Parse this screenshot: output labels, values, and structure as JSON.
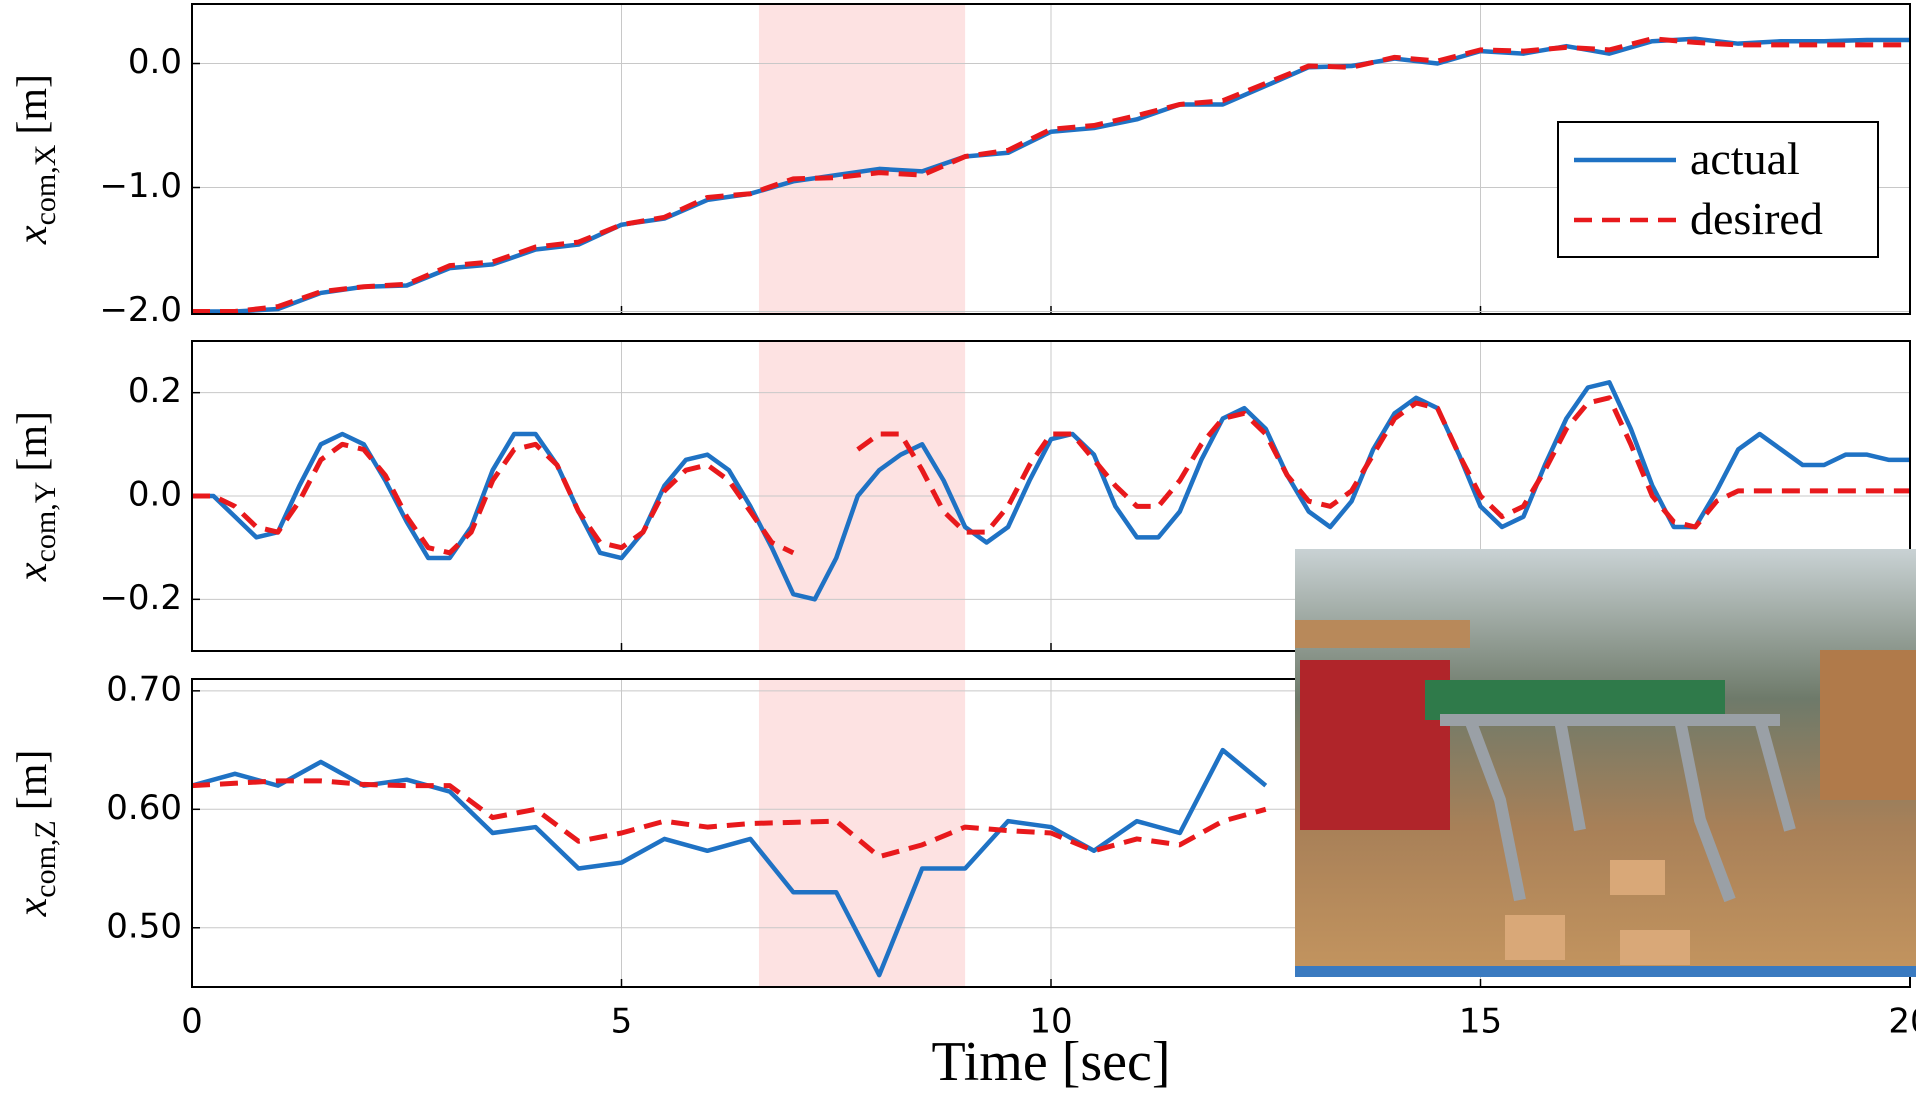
{
  "chart_data": [
    {
      "type": "line",
      "y_label": {
        "symbol": "x",
        "subscript": "com,X",
        "unit": "[m]"
      },
      "x": [
        0,
        0.5,
        1,
        1.5,
        2,
        2.5,
        3,
        3.5,
        4,
        4.5,
        5,
        5.5,
        6,
        6.5,
        7,
        7.5,
        8,
        8.5,
        9,
        9.5,
        10,
        10.5,
        11,
        11.5,
        12,
        12.5,
        13,
        13.5,
        14,
        14.5,
        15,
        15.5,
        16,
        16.5,
        17,
        17.5,
        18,
        18.5,
        19,
        19.5,
        20
      ],
      "series": [
        {
          "name": "actual",
          "color": "#1f72c4",
          "dash": "solid",
          "values": [
            -2.0,
            -2.0,
            -1.98,
            -1.85,
            -1.8,
            -1.79,
            -1.65,
            -1.62,
            -1.5,
            -1.46,
            -1.3,
            -1.25,
            -1.1,
            -1.05,
            -0.95,
            -0.9,
            -0.85,
            -0.87,
            -0.75,
            -0.72,
            -0.55,
            -0.52,
            -0.45,
            -0.33,
            -0.33,
            -0.18,
            -0.03,
            -0.02,
            0.04,
            0.0,
            0.1,
            0.08,
            0.14,
            0.08,
            0.18,
            0.2,
            0.16,
            0.18,
            0.18,
            0.19,
            0.19
          ]
        },
        {
          "name": "desired",
          "color": "#e8191c",
          "dash": "dashed",
          "values": [
            -2.0,
            -2.0,
            -1.96,
            -1.84,
            -1.8,
            -1.78,
            -1.63,
            -1.6,
            -1.48,
            -1.44,
            -1.3,
            -1.24,
            -1.08,
            -1.05,
            -0.93,
            -0.92,
            -0.88,
            -0.9,
            -0.75,
            -0.7,
            -0.53,
            -0.5,
            -0.42,
            -0.33,
            -0.3,
            -0.16,
            -0.02,
            -0.03,
            0.05,
            0.02,
            0.11,
            0.1,
            0.13,
            0.11,
            0.2,
            0.17,
            0.15,
            0.15,
            0.15,
            0.15,
            0.15
          ]
        }
      ],
      "xlim": [
        0,
        20
      ],
      "xticks": [
        0,
        5,
        10,
        15,
        20
      ],
      "ylim": [
        -2.02,
        0.48
      ],
      "yticks": [
        {
          "value": -2.0,
          "label": "−2.0"
        },
        {
          "value": -1.0,
          "label": "−1.0"
        },
        {
          "value": 0.0,
          "label": "0.0"
        }
      ],
      "highlight": [
        6.6,
        9.0
      ],
      "grid": true,
      "legend": "upper right"
    },
    {
      "type": "line",
      "y_label": {
        "symbol": "x",
        "subscript": "com,Y",
        "unit": "[m]"
      },
      "x": [
        0,
        0.25,
        0.5,
        0.75,
        1,
        1.25,
        1.5,
        1.75,
        2,
        2.25,
        2.5,
        2.75,
        3,
        3.25,
        3.5,
        3.75,
        4,
        4.25,
        4.5,
        4.75,
        5,
        5.25,
        5.5,
        5.75,
        6,
        6.25,
        6.5,
        6.75,
        7,
        7.25,
        7.5,
        7.75,
        8,
        8.25,
        8.5,
        8.75,
        9,
        9.25,
        9.5,
        9.75,
        10,
        10.25,
        10.5,
        10.75,
        11,
        11.25,
        11.5,
        11.75,
        12,
        12.25,
        12.5,
        12.75,
        13,
        13.25,
        13.5,
        13.75,
        14,
        14.25,
        14.5,
        14.75,
        15,
        15.25,
        15.5,
        15.75,
        16,
        16.25,
        16.5,
        16.75,
        17,
        17.25,
        17.5,
        17.75,
        18,
        18.25,
        18.5,
        18.75,
        19,
        19.25,
        19.5,
        19.75,
        20
      ],
      "series": [
        {
          "color": "#1f72c4",
          "dash": "solid",
          "values": [
            0.0,
            0.0,
            -0.04,
            -0.08,
            -0.07,
            0.02,
            0.1,
            0.12,
            0.1,
            0.03,
            -0.05,
            -0.12,
            -0.12,
            -0.06,
            0.05,
            0.12,
            0.12,
            0.06,
            -0.03,
            -0.11,
            -0.12,
            -0.07,
            0.02,
            0.07,
            0.08,
            0.05,
            -0.02,
            -0.1,
            -0.19,
            -0.2,
            -0.12,
            0.0,
            0.05,
            0.08,
            0.1,
            0.03,
            -0.06,
            -0.09,
            -0.06,
            0.03,
            0.11,
            0.12,
            0.08,
            -0.02,
            -0.08,
            -0.08,
            -0.03,
            0.07,
            0.15,
            0.17,
            0.13,
            0.04,
            -0.03,
            -0.06,
            -0.01,
            0.09,
            0.16,
            0.19,
            0.17,
            0.08,
            -0.02,
            -0.06,
            -0.04,
            0.06,
            0.15,
            0.21,
            0.22,
            0.13,
            0.02,
            -0.06,
            -0.06,
            0.01,
            0.09,
            0.12,
            0.09,
            0.06,
            0.06,
            0.08,
            0.08,
            0.07,
            0.07
          ]
        },
        {
          "color": "#e8191c",
          "dash": "dashed",
          "values": [
            0.0,
            0.0,
            -0.02,
            -0.06,
            -0.07,
            -0.01,
            0.07,
            0.1,
            0.09,
            0.04,
            -0.04,
            -0.1,
            -0.11,
            -0.07,
            0.03,
            0.09,
            0.1,
            0.06,
            -0.03,
            -0.09,
            -0.1,
            -0.07,
            0.01,
            0.05,
            0.06,
            0.03,
            -0.03,
            -0.09,
            -0.11,
            null,
            null,
            0.09,
            0.12,
            0.12,
            0.05,
            -0.03,
            -0.07,
            -0.07,
            -0.02,
            0.06,
            0.12,
            0.12,
            0.07,
            0.02,
            -0.02,
            -0.02,
            0.03,
            0.1,
            0.15,
            0.16,
            0.12,
            0.04,
            -0.01,
            -0.02,
            0.01,
            0.08,
            0.15,
            0.18,
            0.17,
            0.08,
            0.0,
            -0.04,
            -0.02,
            0.05,
            0.13,
            0.18,
            0.19,
            0.1,
            0.0,
            -0.05,
            -0.06,
            -0.01,
            0.01,
            0.01,
            0.01,
            0.01,
            0.01,
            0.01,
            0.01,
            0.01,
            0.01
          ]
        }
      ],
      "xlim": [
        0,
        20
      ],
      "xticks": [
        0,
        5,
        10,
        15,
        20
      ],
      "ylim": [
        -0.3,
        0.3
      ],
      "yticks": [
        {
          "value": -0.2,
          "label": "−0.2"
        },
        {
          "value": 0.0,
          "label": "0.0"
        },
        0.2
      ],
      "highlight": [
        6.6,
        9.0
      ],
      "grid": true
    },
    {
      "type": "line",
      "y_label": {
        "symbol": "x",
        "subscript": "com,Z",
        "unit": "[m]"
      },
      "x_label": "Time [sec]",
      "x": [
        0,
        0.5,
        1,
        1.5,
        2,
        2.5,
        3,
        3.5,
        4,
        4.5,
        5,
        5.5,
        6,
        6.5,
        7,
        7.5,
        8,
        8.5,
        9,
        9.5,
        10,
        10.5,
        11,
        11.5,
        12,
        12.5,
        13,
        13.5,
        14,
        14.5,
        15,
        15.5,
        16,
        16.5,
        17,
        17.5,
        18,
        18.5,
        19,
        19.5,
        20
      ],
      "series": [
        {
          "color": "#1f72c4",
          "dash": "solid",
          "values": [
            0.62,
            0.63,
            0.62,
            0.64,
            0.62,
            0.625,
            0.615,
            0.58,
            0.585,
            0.55,
            0.555,
            0.575,
            0.565,
            0.575,
            0.53,
            0.53,
            0.46,
            0.55,
            0.55,
            0.59,
            0.585,
            0.565,
            0.59,
            0.58,
            0.65,
            0.62,
            null,
            null,
            null,
            null,
            null,
            null,
            null,
            null,
            null,
            null,
            null,
            null,
            null,
            null,
            null
          ]
        },
        {
          "color": "#e8191c",
          "dash": "dashed",
          "values": [
            0.62,
            0.622,
            0.624,
            0.624,
            0.621,
            0.62,
            0.62,
            0.593,
            0.6,
            0.573,
            0.58,
            0.59,
            0.585,
            0.588,
            0.589,
            0.59,
            0.56,
            0.57,
            0.585,
            0.582,
            0.58,
            0.565,
            0.575,
            0.57,
            0.59,
            0.6,
            null,
            null,
            null,
            null,
            null,
            null,
            null,
            null,
            null,
            null,
            null,
            null,
            null,
            null,
            null
          ]
        }
      ],
      "xlim": [
        0,
        20
      ],
      "xticks": [
        0,
        5,
        10,
        15,
        20
      ],
      "ylim": [
        0.45,
        0.71
      ],
      "yticks": [
        {
          "value": 0.5,
          "label": "0.50"
        },
        {
          "value": 0.6,
          "label": "0.60"
        },
        {
          "value": 0.7,
          "label": "0.70"
        }
      ],
      "highlight": [
        6.6,
        9.0
      ],
      "grid": true
    }
  ]
}
